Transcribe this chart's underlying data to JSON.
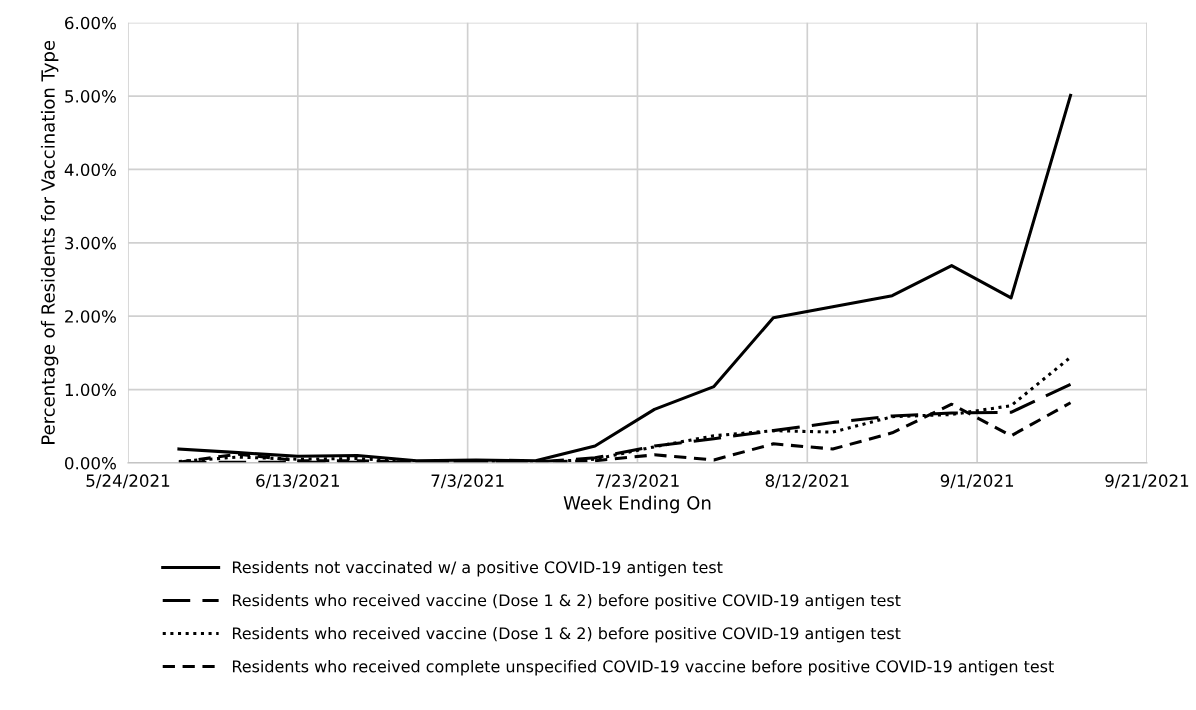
{
  "chart_data": {
    "type": "line",
    "xlabel": "Week Ending On",
    "ylabel": "Percentage of Residents for Vaccination Type",
    "x": [
      "2021-05-30",
      "2021-06-06",
      "2021-06-13",
      "2021-06-20",
      "2021-06-27",
      "2021-07-04",
      "2021-07-11",
      "2021-07-18",
      "2021-07-25",
      "2021-08-01",
      "2021-08-08",
      "2021-08-15",
      "2021-08-22",
      "2021-08-29",
      "2021-09-05",
      "2021-09-12"
    ],
    "series": [
      {
        "name": "Residents not vaccinated w/ a positive COVID-19 antigen test",
        "color": "#000000",
        "line_style": "solid",
        "values": [
          0.19,
          0.14,
          0.09,
          0.1,
          0.03,
          0.04,
          0.03,
          0.23,
          0.73,
          1.04,
          1.98,
          2.13,
          2.28,
          2.69,
          2.25,
          5.01
        ]
      },
      {
        "name": "Residents who received vaccine (Dose 1 & 2) before positive COVID-19 antigen test",
        "color": "#000000",
        "line_style": "longdash",
        "values": [
          0.01,
          0.01,
          0.01,
          0.01,
          0.01,
          0.01,
          0.01,
          0.07,
          0.23,
          0.33,
          0.44,
          0.55,
          0.64,
          0.68,
          0.69,
          1.07
        ]
      },
      {
        "name": "Residents who received vaccine (Dose 1 & 2) before positive COVID-19 antigen test",
        "color": "#000000",
        "line_style": "dotted",
        "values": [
          0.02,
          0.08,
          0.05,
          0.06,
          0.01,
          0.01,
          0.01,
          0.05,
          0.22,
          0.37,
          0.44,
          0.42,
          0.63,
          0.66,
          0.78,
          1.44
        ]
      },
      {
        "name": "Residents who received complete unspecified COVID-19 vaccine before positive COVID-19 antigen test",
        "color": "#000000",
        "line_style": "dashed",
        "values": [
          0.01,
          0.12,
          0.03,
          0.03,
          0.01,
          0.01,
          0.01,
          0.03,
          0.11,
          0.04,
          0.26,
          0.19,
          0.41,
          0.8,
          0.37,
          0.82
        ]
      }
    ],
    "xlim": [
      "2021-05-24",
      "2021-09-21"
    ],
    "xticks": [
      {
        "value": "2021-05-24",
        "label": "5/24/2021"
      },
      {
        "value": "2021-06-13",
        "label": "6/13/2021"
      },
      {
        "value": "2021-07-03",
        "label": "7/3/2021"
      },
      {
        "value": "2021-07-23",
        "label": "7/23/2021"
      },
      {
        "value": "2021-08-12",
        "label": "8/12/2021"
      },
      {
        "value": "2021-09-01",
        "label": "9/1/2021"
      },
      {
        "value": "2021-09-21",
        "label": "9/21/2021"
      }
    ],
    "ylim": [
      0,
      6
    ],
    "yticks": [
      {
        "value": 0,
        "label": "0.00%"
      },
      {
        "value": 1,
        "label": "1.00%"
      },
      {
        "value": 2,
        "label": "2.00%"
      },
      {
        "value": 3,
        "label": "3.00%"
      },
      {
        "value": 4,
        "label": "4.00%"
      },
      {
        "value": 5,
        "label": "5.00%"
      },
      {
        "value": 6,
        "label": "6.00%"
      }
    ],
    "grid": true,
    "legend": "bottom",
    "marker": "none"
  }
}
